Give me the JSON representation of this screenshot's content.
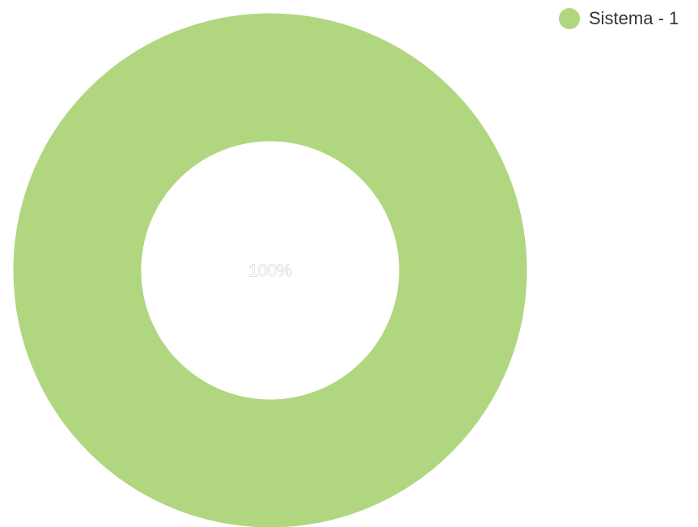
{
  "chart_data": {
    "type": "pie",
    "variant": "donut",
    "slices": [
      {
        "label": "Sistema - 1",
        "value": 1,
        "percent_label": "100%",
        "color": "#b0d77f"
      }
    ],
    "legend_position": "top-right"
  }
}
